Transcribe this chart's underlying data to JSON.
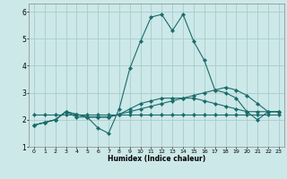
{
  "xlabel": "Humidex (Indice chaleur)",
  "background_color": "#cce8e8",
  "grid_color": "#aacccc",
  "line_color": "#1a6b6b",
  "xlim": [
    -0.5,
    23.5
  ],
  "ylim": [
    1.0,
    6.3
  ],
  "xticks": [
    0,
    1,
    2,
    3,
    4,
    5,
    6,
    7,
    8,
    9,
    10,
    11,
    12,
    13,
    14,
    15,
    16,
    17,
    18,
    19,
    20,
    21,
    22,
    23
  ],
  "yticks": [
    1,
    2,
    3,
    4,
    5,
    6
  ],
  "series": [
    {
      "x": [
        0,
        1,
        2,
        3,
        4,
        5,
        6,
        7,
        8,
        9,
        10,
        11,
        12,
        13,
        14,
        15,
        16,
        17,
        18,
        19,
        20,
        21,
        22,
        23
      ],
      "y": [
        1.8,
        1.9,
        2.0,
        2.3,
        2.1,
        2.1,
        1.7,
        1.5,
        2.4,
        3.9,
        4.9,
        5.8,
        5.9,
        5.3,
        5.9,
        4.9,
        4.2,
        3.1,
        3.0,
        2.8,
        2.3,
        2.0,
        2.3,
        2.3
      ]
    },
    {
      "x": [
        0,
        1,
        2,
        3,
        4,
        5,
        6,
        7,
        8,
        9,
        10,
        11,
        12,
        13,
        14,
        15,
        16,
        17,
        18,
        19,
        20,
        21,
        22,
        23
      ],
      "y": [
        1.8,
        1.9,
        2.0,
        2.3,
        2.2,
        2.1,
        2.1,
        2.1,
        2.2,
        2.3,
        2.4,
        2.5,
        2.6,
        2.7,
        2.8,
        2.9,
        3.0,
        3.1,
        3.2,
        3.1,
        2.9,
        2.6,
        2.3,
        2.3
      ]
    },
    {
      "x": [
        0,
        1,
        2,
        3,
        4,
        5,
        6,
        7,
        8,
        9,
        10,
        11,
        12,
        13,
        14,
        15,
        16,
        17,
        18,
        19,
        20,
        21,
        22,
        23
      ],
      "y": [
        2.2,
        2.2,
        2.2,
        2.2,
        2.2,
        2.2,
        2.2,
        2.2,
        2.2,
        2.2,
        2.2,
        2.2,
        2.2,
        2.2,
        2.2,
        2.2,
        2.2,
        2.2,
        2.2,
        2.2,
        2.2,
        2.2,
        2.2,
        2.2
      ]
    },
    {
      "x": [
        0,
        1,
        2,
        3,
        4,
        5,
        6,
        7,
        8,
        9,
        10,
        11,
        12,
        13,
        14,
        15,
        16,
        17,
        18,
        19,
        20,
        21,
        22,
        23
      ],
      "y": [
        1.8,
        1.9,
        2.0,
        2.3,
        2.2,
        2.1,
        2.1,
        2.1,
        2.2,
        2.4,
        2.6,
        2.7,
        2.8,
        2.8,
        2.8,
        2.8,
        2.7,
        2.6,
        2.5,
        2.4,
        2.3,
        2.3,
        2.3,
        2.3
      ]
    }
  ]
}
